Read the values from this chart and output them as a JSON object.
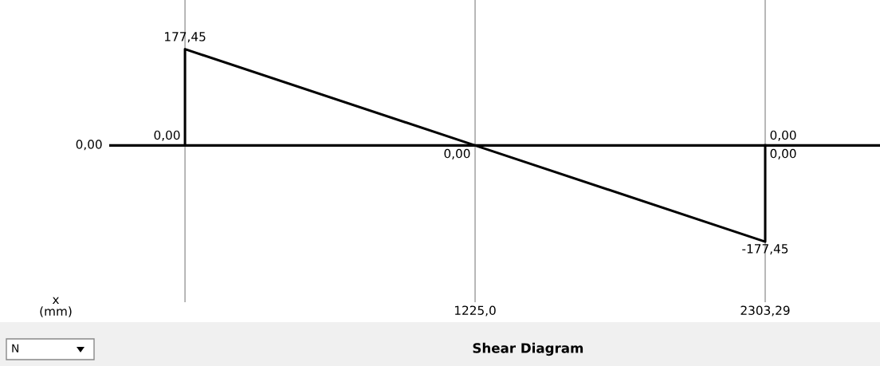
{
  "chart_data": {
    "type": "line",
    "title": "Shear Diagram",
    "x": [
      146.71,
      146.71,
      1225,
      2303.29,
      2303.29
    ],
    "series": [
      {
        "color": "#000000",
        "values": [
          0,
          177.45,
          0,
          -177.45,
          0
        ],
        "value_labels": [
          "0,00",
          "177,45",
          "0,00",
          "-177,45",
          "0,00"
        ]
      }
    ],
    "annotations": [
      {
        "text": "0,00",
        "x": 2303.29,
        "y": 0
      },
      "N",
      "x\n(mm)"
    ],
    "ref_lines": [
      {
        "axis": "y",
        "value": 0,
        "label": "0,00",
        "color": "#000000"
      }
    ],
    "xlim": [
      -135,
      2730
    ],
    "xticks": [
      {
        "value": 146.71,
        "label": null
      },
      {
        "value": 1225,
        "label": "1225,0"
      },
      {
        "value": 2303.29,
        "label": "2303,29"
      }
    ],
    "ylim": [
      -289,
      268
    ],
    "grid": "x",
    "legend": false,
    "marker": "none",
    "line_style": "solid"
  }
}
